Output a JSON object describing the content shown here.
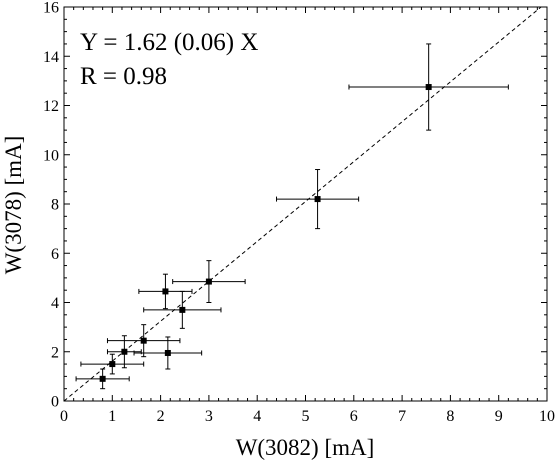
{
  "chart_data": {
    "type": "scatter",
    "title": "",
    "xlabel": "W(3082) [mA]",
    "ylabel": "W(3078) [mA]",
    "xlim": [
      0,
      10
    ],
    "ylim": [
      0,
      16
    ],
    "xticks": [
      0,
      1,
      2,
      3,
      4,
      5,
      6,
      7,
      8,
      9,
      10
    ],
    "yticks": [
      0,
      2,
      4,
      6,
      8,
      10,
      12,
      14,
      16
    ],
    "xtick_labels": [
      "0",
      "1",
      "2",
      "3",
      "4",
      "5",
      "6",
      "7",
      "8",
      "9",
      "10"
    ],
    "ytick_labels": [
      "0",
      "2",
      "4",
      "6",
      "8",
      "10",
      "12",
      "14",
      "16"
    ],
    "grid": false,
    "annotations": [
      "Y = 1.62 (0.06) X",
      "R = 0.98"
    ],
    "fit_line": {
      "slope": 1.62,
      "style": "dashed"
    },
    "points": [
      {
        "x": 0.8,
        "y": 0.9,
        "xerr": 0.55,
        "yerr": 0.4
      },
      {
        "x": 1.0,
        "y": 1.5,
        "xerr": 0.65,
        "yerr": 0.4
      },
      {
        "x": 1.25,
        "y": 2.0,
        "xerr": 0.35,
        "yerr": 0.65
      },
      {
        "x": 1.65,
        "y": 2.45,
        "xerr": 0.75,
        "yerr": 0.65
      },
      {
        "x": 2.1,
        "y": 4.45,
        "xerr": 0.55,
        "yerr": 0.7
      },
      {
        "x": 2.15,
        "y": 1.95,
        "xerr": 0.7,
        "yerr": 0.65
      },
      {
        "x": 2.45,
        "y": 3.7,
        "xerr": 0.8,
        "yerr": 0.75
      },
      {
        "x": 3.0,
        "y": 4.85,
        "xerr": 0.75,
        "yerr": 0.85
      },
      {
        "x": 5.25,
        "y": 8.2,
        "xerr": 0.85,
        "yerr": 1.2
      },
      {
        "x": 7.55,
        "y": 12.75,
        "xerr": 1.65,
        "yerr": 1.75
      }
    ]
  }
}
